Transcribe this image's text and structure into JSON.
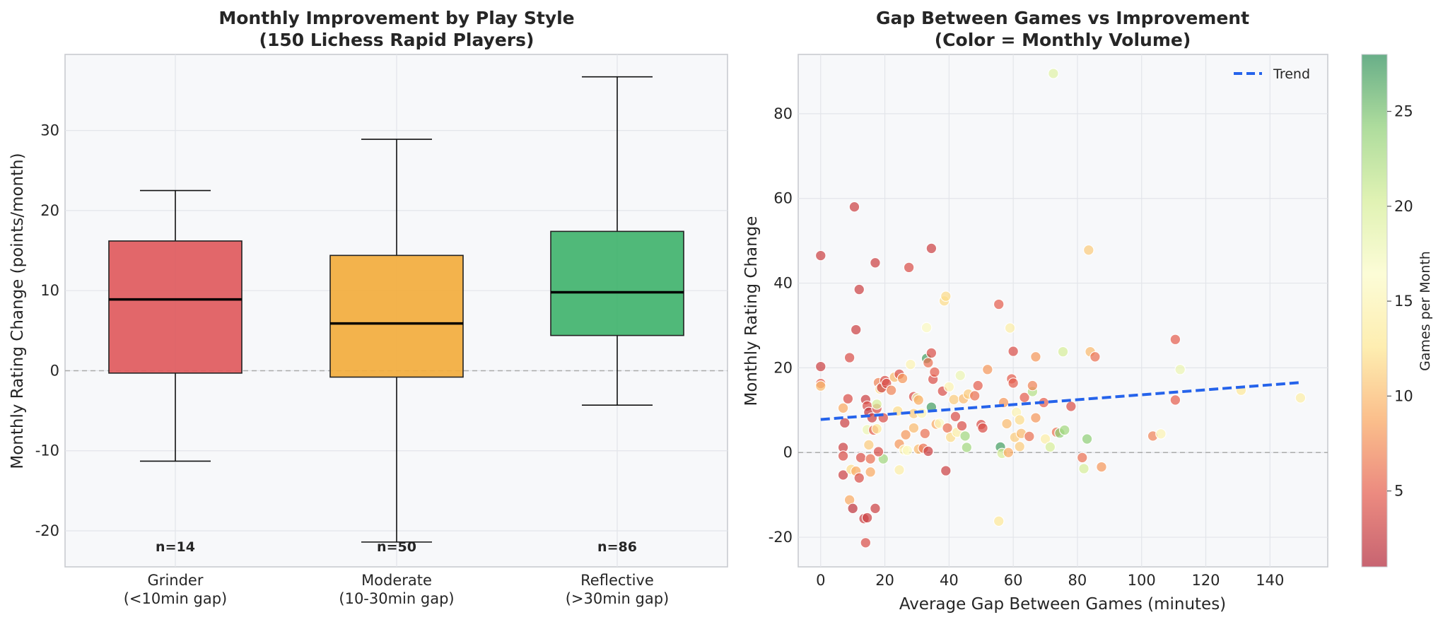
{
  "colors": {
    "grinder": "#e05a5d",
    "moderate": "#f2ad3d",
    "reflective": "#41b36e",
    "trend": "#2563eb",
    "zero_line": "#aaaaaa",
    "colormap": [
      "#b2283a",
      "#e45d4e",
      "#f9a55e",
      "#fde792",
      "#fbfbc7",
      "#d4ed96",
      "#8fcf77",
      "#2e8f5a"
    ]
  },
  "chart_data": [
    {
      "type": "box",
      "title": "Monthly Improvement by Play Style",
      "subtitle": "(150 Lichess Rapid Players)",
      "xlabel": "",
      "ylabel": "Monthly Rating Change (points/month)",
      "ylim": [
        -24.5,
        39.5
      ],
      "yticks": [
        -20,
        -10,
        0,
        10,
        20,
        30
      ],
      "grid": true,
      "reference_line": 0,
      "categories": [
        "Grinder\n(<10min gap)",
        "Moderate\n(10-30min gap)",
        "Reflective\n(>30min gap)"
      ],
      "boxes": [
        {
          "category": "Grinder\n(<10min gap)",
          "whisker_low": -11.3,
          "q1": -0.3,
          "median": 8.9,
          "q3": 16.2,
          "whisker_high": 22.5,
          "n_label": "n=14"
        },
        {
          "category": "Moderate\n(10-30min gap)",
          "whisker_low": -21.4,
          "q1": -0.8,
          "median": 5.9,
          "q3": 14.4,
          "whisker_high": 28.9,
          "n_label": "n=50"
        },
        {
          "category": "Reflective\n(>30min gap)",
          "whisker_low": -4.3,
          "q1": 4.4,
          "median": 9.8,
          "q3": 17.4,
          "whisker_high": 36.7,
          "n_label": "n=86"
        }
      ]
    },
    {
      "type": "scatter",
      "title": "Gap Between Games vs Improvement",
      "subtitle": "(Color = Monthly Volume)",
      "xlabel": "Average Gap Between Games (minutes)",
      "ylabel": "Monthly Rating Change",
      "xlim": [
        -7,
        158
      ],
      "ylim": [
        -27,
        94
      ],
      "xticks": [
        0,
        20,
        40,
        60,
        80,
        100,
        120,
        140
      ],
      "yticks": [
        -20,
        0,
        20,
        40,
        60,
        80
      ],
      "grid": true,
      "reference_line": 0,
      "legend": {
        "position": "top-right",
        "entries": [
          "Trend"
        ]
      },
      "colorbar": {
        "label": "Games per Month",
        "range": [
          1,
          28
        ],
        "ticks": [
          5,
          10,
          15,
          20,
          25
        ]
      },
      "trend": {
        "x": [
          0,
          149
        ],
        "y": [
          7.8,
          16.5
        ]
      },
      "points": [
        {
          "x": 0,
          "y": 46.5,
          "c": 3
        },
        {
          "x": 0,
          "y": 20.3,
          "c": 3
        },
        {
          "x": 0,
          "y": 16.3,
          "c": 5
        },
        {
          "x": 0,
          "y": 15.7,
          "c": 10
        },
        {
          "x": 10.5,
          "y": 58,
          "c": 3
        },
        {
          "x": 17,
          "y": 44.8,
          "c": 3
        },
        {
          "x": 12,
          "y": 38.5,
          "c": 3
        },
        {
          "x": 11,
          "y": 29,
          "c": 3
        },
        {
          "x": 9,
          "y": 22.4,
          "c": 4
        },
        {
          "x": 8.5,
          "y": 12.7,
          "c": 4
        },
        {
          "x": 7,
          "y": 10.5,
          "c": 9
        },
        {
          "x": 7.5,
          "y": 7,
          "c": 3
        },
        {
          "x": 7,
          "y": 1.2,
          "c": 3
        },
        {
          "x": 7,
          "y": -0.8,
          "c": 4
        },
        {
          "x": 7,
          "y": -5.3,
          "c": 3
        },
        {
          "x": 9.5,
          "y": -4,
          "c": 12
        },
        {
          "x": 11,
          "y": -4.4,
          "c": 9
        },
        {
          "x": 12,
          "y": -6,
          "c": 4
        },
        {
          "x": 9,
          "y": -11.2,
          "c": 9
        },
        {
          "x": 10,
          "y": -13.2,
          "c": 2
        },
        {
          "x": 13.5,
          "y": -15.6,
          "c": 3
        },
        {
          "x": 14.5,
          "y": -15.4,
          "c": 3
        },
        {
          "x": 14,
          "y": -21.3,
          "c": 4
        },
        {
          "x": 12.5,
          "y": -1.2,
          "c": 4
        },
        {
          "x": 14,
          "y": 12.5,
          "c": 3
        },
        {
          "x": 14.5,
          "y": 11,
          "c": 4
        },
        {
          "x": 15,
          "y": 9.5,
          "c": 2
        },
        {
          "x": 16,
          "y": 8.2,
          "c": 3
        },
        {
          "x": 14.5,
          "y": 5.4,
          "c": 18
        },
        {
          "x": 16.5,
          "y": 5.3,
          "c": 5
        },
        {
          "x": 15,
          "y": 1.8,
          "c": 11
        },
        {
          "x": 15.5,
          "y": -1.5,
          "c": 6
        },
        {
          "x": 15.5,
          "y": -4.6,
          "c": 9
        },
        {
          "x": 17,
          "y": -13.2,
          "c": 3
        },
        {
          "x": 17.5,
          "y": 5.6,
          "c": 13
        },
        {
          "x": 17.5,
          "y": 10.4,
          "c": 4
        },
        {
          "x": 17.5,
          "y": 11.4,
          "c": 20
        },
        {
          "x": 18,
          "y": 16.5,
          "c": 7
        },
        {
          "x": 18.5,
          "y": 15,
          "c": 12
        },
        {
          "x": 19,
          "y": 15.3,
          "c": 3
        },
        {
          "x": 20,
          "y": 17,
          "c": 4
        },
        {
          "x": 20.5,
          "y": 16.3,
          "c": 4
        },
        {
          "x": 19.5,
          "y": 8.2,
          "c": 4
        },
        {
          "x": 19.5,
          "y": -1.5,
          "c": 23
        },
        {
          "x": 18,
          "y": 0.2,
          "c": 4
        },
        {
          "x": 22,
          "y": 14.7,
          "c": 7
        },
        {
          "x": 23,
          "y": 17.8,
          "c": 10
        },
        {
          "x": 24,
          "y": 9.8,
          "c": 12
        },
        {
          "x": 24.5,
          "y": 18.5,
          "c": 4
        },
        {
          "x": 25.5,
          "y": 17.5,
          "c": 8
        },
        {
          "x": 24.5,
          "y": 2,
          "c": 8
        },
        {
          "x": 24.5,
          "y": -4.1,
          "c": 14
        },
        {
          "x": 26,
          "y": 0.6,
          "c": 15
        },
        {
          "x": 26.5,
          "y": 4.2,
          "c": 8
        },
        {
          "x": 27,
          "y": 0.5,
          "c": 16
        },
        {
          "x": 27.5,
          "y": 43.7,
          "c": 4
        },
        {
          "x": 28,
          "y": 20.8,
          "c": 15
        },
        {
          "x": 29,
          "y": 13.2,
          "c": 4
        },
        {
          "x": 29,
          "y": 9.2,
          "c": 11
        },
        {
          "x": 29,
          "y": 5.8,
          "c": 10
        },
        {
          "x": 30,
          "y": 12.9,
          "c": 18
        },
        {
          "x": 30.5,
          "y": 12.4,
          "c": 9
        },
        {
          "x": 30.5,
          "y": 0.8,
          "c": 10
        },
        {
          "x": 31.5,
          "y": 9.3,
          "c": 15
        },
        {
          "x": 32,
          "y": 1,
          "c": 6
        },
        {
          "x": 32.5,
          "y": 4.5,
          "c": 6
        },
        {
          "x": 33,
          "y": 29.5,
          "c": 16
        },
        {
          "x": 33,
          "y": 22.2,
          "c": 27
        },
        {
          "x": 33.5,
          "y": 21.2,
          "c": 6
        },
        {
          "x": 33.5,
          "y": 0.3,
          "c": 3
        },
        {
          "x": 34.5,
          "y": 48.2,
          "c": 3
        },
        {
          "x": 34.5,
          "y": 23.5,
          "c": 4
        },
        {
          "x": 34.5,
          "y": 10.7,
          "c": 27
        },
        {
          "x": 35,
          "y": 17.3,
          "c": 4
        },
        {
          "x": 35.5,
          "y": 19,
          "c": 5
        },
        {
          "x": 36,
          "y": 6.7,
          "c": 9
        },
        {
          "x": 37,
          "y": 6.9,
          "c": 16
        },
        {
          "x": 38,
          "y": 14.5,
          "c": 4
        },
        {
          "x": 38.5,
          "y": 35.8,
          "c": 12
        },
        {
          "x": 39,
          "y": 36.9,
          "c": 12
        },
        {
          "x": 39,
          "y": -4.3,
          "c": 3
        },
        {
          "x": 39.5,
          "y": 5.8,
          "c": 6
        },
        {
          "x": 40,
          "y": 15.5,
          "c": 15
        },
        {
          "x": 40.5,
          "y": 3.6,
          "c": 12
        },
        {
          "x": 41.5,
          "y": 12.5,
          "c": 11
        },
        {
          "x": 42,
          "y": 8.5,
          "c": 4
        },
        {
          "x": 42.5,
          "y": 4.8,
          "c": 14
        },
        {
          "x": 43.5,
          "y": 18.2,
          "c": 18
        },
        {
          "x": 44,
          "y": 6.3,
          "c": 4
        },
        {
          "x": 44.5,
          "y": 12.7,
          "c": 10
        },
        {
          "x": 45,
          "y": 3.9,
          "c": 23
        },
        {
          "x": 45.5,
          "y": 1.2,
          "c": 23
        },
        {
          "x": 46,
          "y": 13.8,
          "c": 11
        },
        {
          "x": 48,
          "y": 13.4,
          "c": 6
        },
        {
          "x": 49,
          "y": 15.8,
          "c": 5
        },
        {
          "x": 50,
          "y": 6.6,
          "c": 4
        },
        {
          "x": 50.5,
          "y": 5.8,
          "c": 4
        },
        {
          "x": 52,
          "y": 19.6,
          "c": 8
        },
        {
          "x": 55.5,
          "y": 35,
          "c": 5
        },
        {
          "x": 55.5,
          "y": -16.2,
          "c": 13
        },
        {
          "x": 56,
          "y": 1.3,
          "c": 27
        },
        {
          "x": 56.5,
          "y": -0.2,
          "c": 20
        },
        {
          "x": 57,
          "y": 11.8,
          "c": 8
        },
        {
          "x": 58,
          "y": 6.8,
          "c": 10
        },
        {
          "x": 58.5,
          "y": 0,
          "c": 9
        },
        {
          "x": 59,
          "y": 29.4,
          "c": 14
        },
        {
          "x": 59.5,
          "y": 17.4,
          "c": 5
        },
        {
          "x": 60,
          "y": 23.9,
          "c": 4
        },
        {
          "x": 60,
          "y": 16.4,
          "c": 5
        },
        {
          "x": 60.5,
          "y": 3.6,
          "c": 11
        },
        {
          "x": 61,
          "y": 9.5,
          "c": 15
        },
        {
          "x": 62,
          "y": 7.7,
          "c": 12
        },
        {
          "x": 62,
          "y": 1.4,
          "c": 11
        },
        {
          "x": 62.5,
          "y": 4.5,
          "c": 10
        },
        {
          "x": 63.5,
          "y": 13,
          "c": 5
        },
        {
          "x": 65,
          "y": 3.8,
          "c": 6
        },
        {
          "x": 66,
          "y": 14.4,
          "c": 22
        },
        {
          "x": 66,
          "y": 15.8,
          "c": 7
        },
        {
          "x": 67,
          "y": 22.6,
          "c": 8
        },
        {
          "x": 67,
          "y": 8.2,
          "c": 8
        },
        {
          "x": 69.5,
          "y": 11.8,
          "c": 5
        },
        {
          "x": 70,
          "y": 3.2,
          "c": 14
        },
        {
          "x": 71.5,
          "y": 1.3,
          "c": 20
        },
        {
          "x": 72.5,
          "y": 89.5,
          "c": 19
        },
        {
          "x": 73.5,
          "y": 4.8,
          "c": 6
        },
        {
          "x": 74.5,
          "y": 4.6,
          "c": 24
        },
        {
          "x": 75.5,
          "y": 23.8,
          "c": 20
        },
        {
          "x": 76,
          "y": 5.3,
          "c": 23
        },
        {
          "x": 78,
          "y": 10.9,
          "c": 4
        },
        {
          "x": 81.5,
          "y": -1.2,
          "c": 6
        },
        {
          "x": 82,
          "y": -3.8,
          "c": 20
        },
        {
          "x": 83,
          "y": 3.2,
          "c": 24
        },
        {
          "x": 83.5,
          "y": 47.8,
          "c": 11
        },
        {
          "x": 84,
          "y": 23.8,
          "c": 10
        },
        {
          "x": 85.5,
          "y": 22.6,
          "c": 6
        },
        {
          "x": 87.5,
          "y": -3.4,
          "c": 8
        },
        {
          "x": 103.5,
          "y": 3.9,
          "c": 7
        },
        {
          "x": 106,
          "y": 4.4,
          "c": 15
        },
        {
          "x": 110.5,
          "y": 26.7,
          "c": 5
        },
        {
          "x": 110.5,
          "y": 12.4,
          "c": 5
        },
        {
          "x": 112,
          "y": 19.6,
          "c": 18
        },
        {
          "x": 131,
          "y": 14.7,
          "c": 13
        },
        {
          "x": 149.5,
          "y": 12.9,
          "c": 14
        }
      ]
    }
  ]
}
